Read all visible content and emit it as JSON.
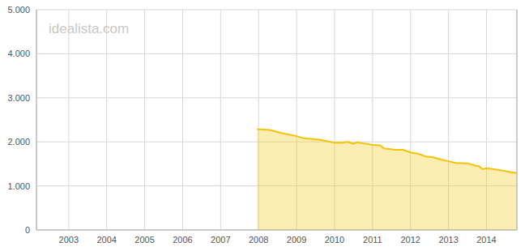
{
  "chart_data": {
    "type": "area",
    "annotation": "idealista.com",
    "x": [
      2007.96,
      2008.3,
      2008.6,
      2009.0,
      2009.2,
      2009.6,
      2010.0,
      2010.2,
      2010.35,
      2010.5,
      2010.6,
      2010.8,
      2011.0,
      2011.2,
      2011.3,
      2011.6,
      2011.8,
      2012.0,
      2012.2,
      2012.4,
      2012.6,
      2012.8,
      2013.0,
      2013.2,
      2013.5,
      2013.7,
      2013.8,
      2013.9,
      2014.0,
      2014.2,
      2014.4,
      2014.6,
      2014.79
    ],
    "values": [
      2290,
      2270,
      2200,
      2130,
      2080,
      2050,
      1980,
      1980,
      2000,
      1960,
      1990,
      1960,
      1930,
      1920,
      1850,
      1820,
      1820,
      1760,
      1730,
      1670,
      1650,
      1600,
      1560,
      1520,
      1510,
      1460,
      1450,
      1380,
      1400,
      1380,
      1350,
      1320,
      1290
    ],
    "color": "#f5c400",
    "xlim": [
      2002.15,
      2014.8
    ],
    "xticks": [
      2003,
      2004,
      2005,
      2006,
      2007,
      2008,
      2009,
      2010,
      2011,
      2012,
      2013,
      2014
    ],
    "ylim": [
      0,
      5000
    ],
    "yticks": [
      0,
      {
        "value": 1000,
        "label": "1.000"
      },
      {
        "value": 2000,
        "label": "2.000"
      },
      {
        "value": 3000,
        "label": "3.000"
      },
      {
        "value": 4000,
        "label": "4.000"
      },
      {
        "value": 5000,
        "label": "5.000"
      }
    ],
    "grid": true
  }
}
